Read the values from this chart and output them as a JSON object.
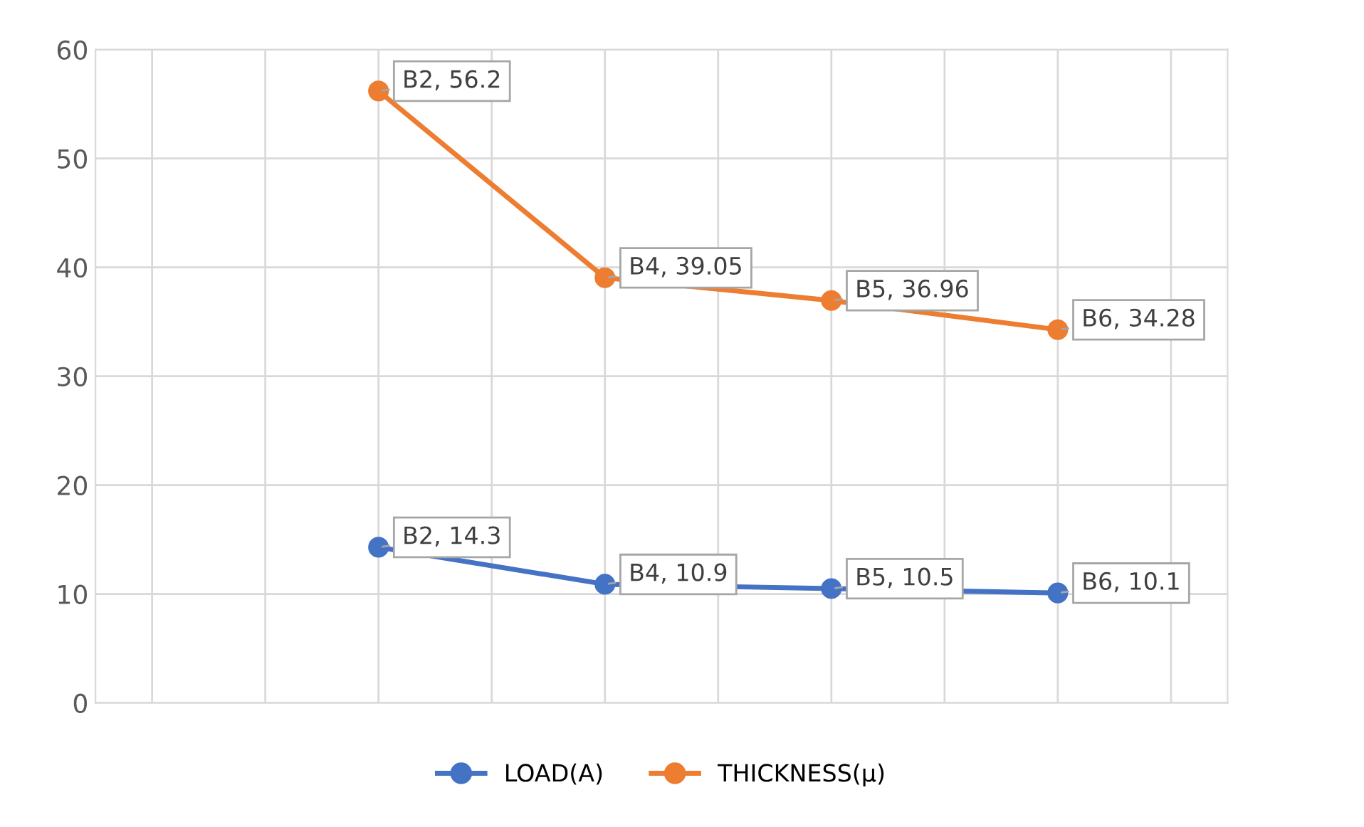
{
  "chart_data": {
    "type": "line",
    "categories": [
      null,
      null,
      null,
      null,
      null,
      null,
      null,
      null,
      null,
      null
    ],
    "series": [
      {
        "name": "LOAD(A)",
        "color": "#4472c4",
        "values": [
          null,
          null,
          14.3,
          null,
          10.9,
          null,
          10.5,
          null,
          10.1,
          null
        ],
        "value_labels": [
          null,
          null,
          "B2, 14.3",
          null,
          "B4, 10.9",
          null,
          "B5, 10.5",
          null,
          "B6, 10.1",
          null
        ]
      },
      {
        "name": "THICKNESS(µ)",
        "color": "#ed7d31",
        "values": [
          null,
          null,
          56.2,
          null,
          39.05,
          null,
          36.96,
          null,
          34.28,
          null
        ],
        "value_labels": [
          null,
          null,
          "B2, 56.2",
          null,
          "B4, 39.05",
          null,
          "B5, 36.96",
          null,
          "B6, 34.28",
          null
        ]
      }
    ],
    "ylim": [
      0,
      60
    ],
    "yticks": [
      0,
      10,
      20,
      30,
      40,
      50,
      60
    ],
    "tick_labels": "y",
    "grid": true,
    "legend": "bottom",
    "marker": "circle",
    "line_style": "solid"
  }
}
